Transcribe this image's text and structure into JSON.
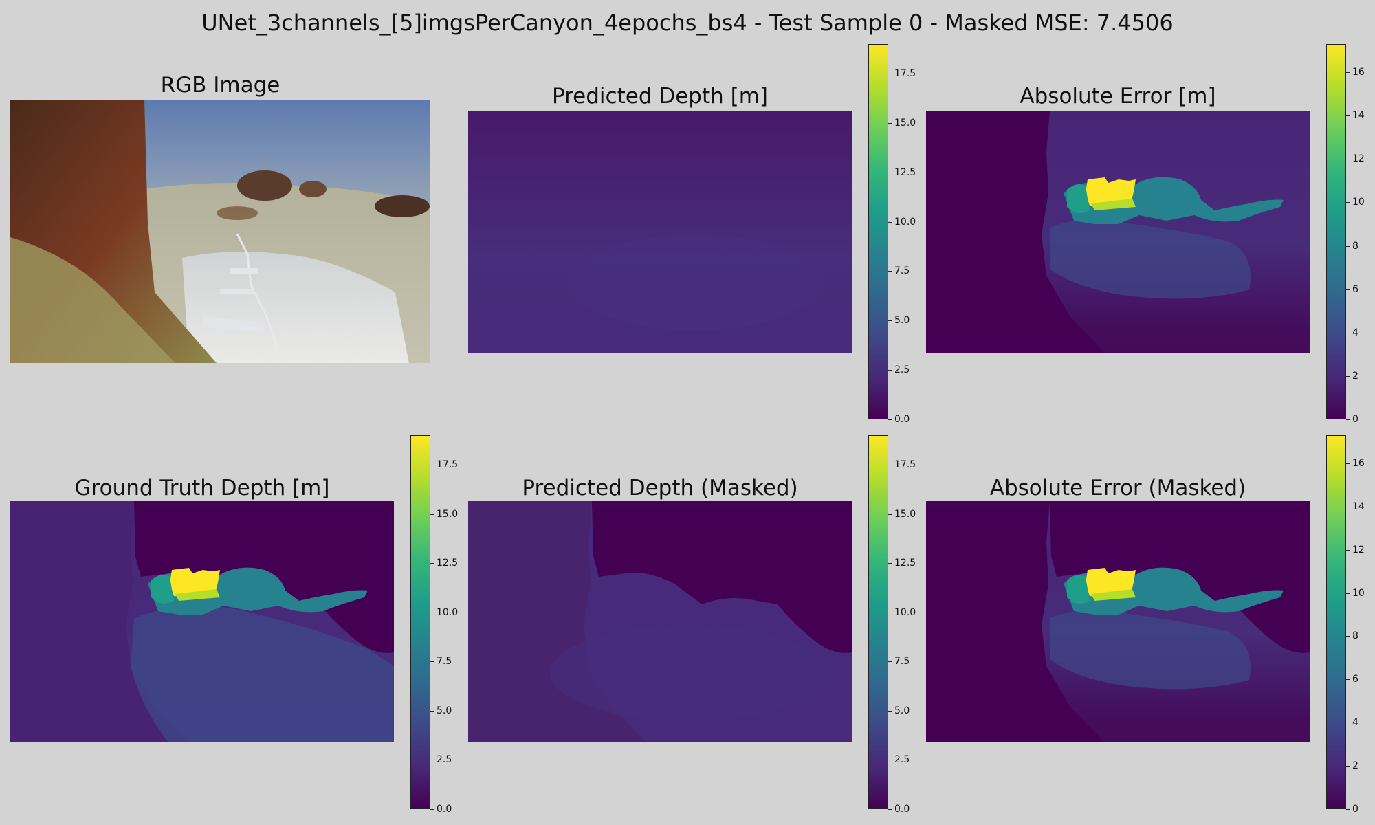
{
  "figure_title": "UNet_3channels_[5]imgsPerCanyon_4epochs_bs4 - Test Sample 0 - Masked MSE: 7.4506",
  "colors": {
    "background": "#d3d3d3",
    "viridis_stops": [
      "#440154",
      "#482878",
      "#3e4989",
      "#31688e",
      "#26828e",
      "#1f9e89",
      "#35b779",
      "#6ece58",
      "#b5de2b",
      "#fde725"
    ]
  },
  "chart_data": [
    {
      "type": "image",
      "title": "RGB Image",
      "content": "underwater photograph of a canyon seabed with a transect tape"
    },
    {
      "type": "heatmap",
      "title": "Predicted Depth [m]",
      "colormap": "viridis",
      "colorbar": {
        "vmin": 0,
        "vmax": 19.0,
        "ticks": [
          "0.0",
          "2.5",
          "5.0",
          "7.5",
          "10.0",
          "12.5",
          "15.0",
          "17.5"
        ]
      }
    },
    {
      "type": "heatmap",
      "title": "Absolute Error [m]",
      "colormap": "viridis",
      "colorbar": {
        "vmin": 0,
        "vmax": 17.3,
        "ticks": [
          "0",
          "2",
          "4",
          "6",
          "8",
          "10",
          "12",
          "14",
          "16"
        ]
      }
    },
    {
      "type": "heatmap",
      "title": "Ground Truth Depth [m]",
      "colormap": "viridis",
      "colorbar": {
        "vmin": 0,
        "vmax": 19.0,
        "ticks": [
          "0.0",
          "2.5",
          "5.0",
          "7.5",
          "10.0",
          "12.5",
          "15.0",
          "17.5"
        ]
      }
    },
    {
      "type": "heatmap",
      "title": "Predicted Depth (Masked)",
      "colormap": "viridis",
      "colorbar": {
        "vmin": 0,
        "vmax": 19.0,
        "ticks": [
          "0.0",
          "2.5",
          "5.0",
          "7.5",
          "10.0",
          "12.5",
          "15.0",
          "17.5"
        ]
      }
    },
    {
      "type": "heatmap",
      "title": "Absolute Error (Masked)",
      "colormap": "viridis",
      "colorbar": {
        "vmin": 0,
        "vmax": 17.3,
        "ticks": [
          "0",
          "2",
          "4",
          "6",
          "8",
          "10",
          "12",
          "14",
          "16"
        ]
      }
    }
  ]
}
